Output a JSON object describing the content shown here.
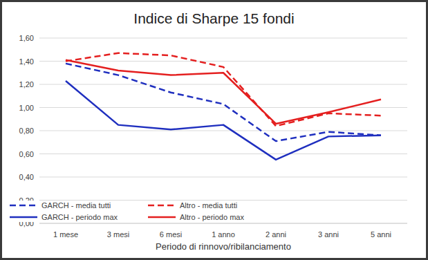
{
  "chart_data": {
    "type": "line",
    "title": "Indice di Sharpe 15 fondi",
    "x_label": "Periodo di rinnovo/ribilanciamento",
    "categories": [
      "1 mese",
      "3 mesi",
      "6 mesi",
      "1 anno",
      "2 anni",
      "3 anni",
      "5 anni"
    ],
    "series": [
      {
        "name": "GARCH - media tutti",
        "color": "#1f2fbf",
        "line_style": "dashed",
        "values": [
          1.38,
          1.28,
          1.13,
          1.03,
          0.71,
          0.79,
          0.76
        ]
      },
      {
        "name": "Altro - media tutti",
        "color": "#e41f1f",
        "line_style": "dashed",
        "values": [
          1.4,
          1.47,
          1.45,
          1.35,
          0.84,
          0.95,
          0.93
        ]
      },
      {
        "name": "GARCH - periodo max",
        "color": "#1f2fbf",
        "line_style": "solid",
        "values": [
          1.23,
          0.85,
          0.81,
          0.85,
          0.55,
          0.75,
          0.76
        ]
      },
      {
        "name": "Altro - periodo max",
        "color": "#e41f1f",
        "line_style": "solid",
        "values": [
          1.41,
          1.32,
          1.28,
          1.3,
          0.86,
          0.96,
          1.07
        ]
      }
    ],
    "ylim": [
      0,
      1.6
    ],
    "yticks": [
      {
        "value": 0,
        "label": "0,00"
      },
      {
        "value": 0.2,
        "label": "0,20"
      },
      {
        "value": 0.4,
        "label": "0,40"
      },
      {
        "value": 0.6,
        "label": "0,60"
      },
      {
        "value": 0.8,
        "label": "0,80"
      },
      {
        "value": 1.0,
        "label": "1,00"
      },
      {
        "value": 1.2,
        "label": "1,20"
      },
      {
        "value": 1.4,
        "label": "1,40"
      },
      {
        "value": 1.6,
        "label": "1,60"
      }
    ],
    "grid": true,
    "legend": "bottom-left"
  }
}
